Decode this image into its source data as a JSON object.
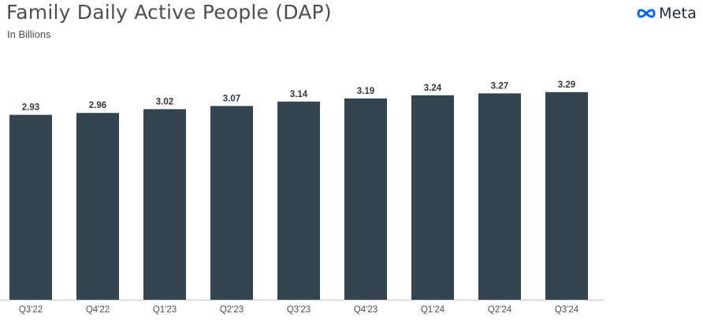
{
  "header": {
    "title": "Family Daily Active People (DAP)",
    "subtitle": "In Billions",
    "brand": "Meta",
    "brand_icon": "meta-infinity-logo-icon",
    "brand_color": "#0866ff"
  },
  "colors": {
    "bar": "#344550",
    "axis": "#c8c8c8"
  },
  "chart_data": {
    "type": "bar",
    "title": "Family Daily Active People (DAP)",
    "subtitle": "In Billions",
    "xlabel": "",
    "ylabel": "",
    "categories": [
      "Q3'22",
      "Q4'22",
      "Q1'23",
      "Q2'23",
      "Q3'23",
      "Q4'23",
      "Q1'24",
      "Q2'24",
      "Q3'24"
    ],
    "values": [
      2.93,
      2.96,
      3.02,
      3.07,
      3.14,
      3.19,
      3.24,
      3.27,
      3.29
    ],
    "value_labels": [
      "2.93",
      "2.96",
      "3.02",
      "3.07",
      "3.14",
      "3.19",
      "3.24",
      "3.27",
      "3.29"
    ],
    "ylim": [
      0,
      3.5
    ],
    "grid": false,
    "legend": "none"
  }
}
